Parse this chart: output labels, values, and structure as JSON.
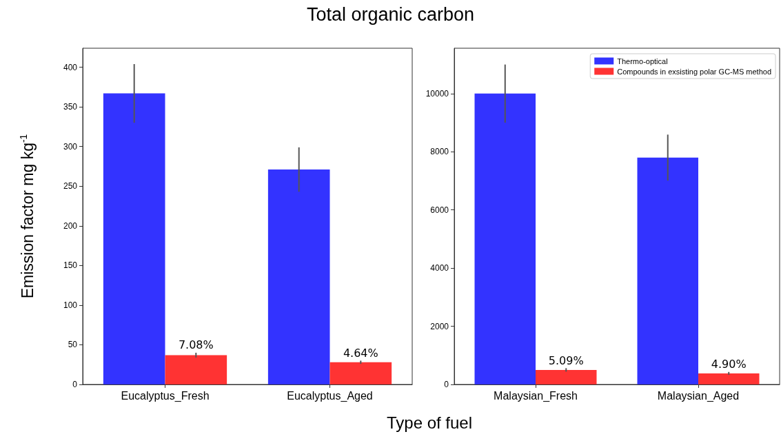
{
  "chart_data": [
    {
      "type": "bar",
      "title": "Total organic carbon",
      "xlabel": "Type of fuel",
      "ylabel": "Emission factor mg kg$^{-1}$",
      "categories": [
        "Eucalyptus_Fresh",
        "Eucalyptus_Aged"
      ],
      "ylim": [
        0,
        424
      ],
      "yticks": [
        0,
        50,
        100,
        150,
        200,
        250,
        300,
        350,
        400
      ],
      "grid": false,
      "legend": false,
      "series": [
        {
          "color": "#3333ff",
          "values": [
            367,
            271
          ],
          "errors": [
            37,
            28
          ]
        },
        {
          "color": "#ff3333",
          "values": [
            37,
            28
          ],
          "errors": [
            3,
            2
          ]
        }
      ],
      "annotations": [
        {
          "text": "7.08%",
          "x": "Eucalyptus_Fresh",
          "y": 37
        },
        {
          "text": "4.64%",
          "x": "Eucalyptus_Aged",
          "y": 28
        }
      ]
    },
    {
      "type": "bar",
      "categories": [
        "Malaysian_Fresh",
        "Malaysian_Aged"
      ],
      "ylim": [
        0,
        11560
      ],
      "yticks": [
        0,
        2000,
        4000,
        6000,
        8000,
        10000
      ],
      "grid": false,
      "legend": "top right",
      "series": [
        {
          "name": "Thermo-optical",
          "color": "#3333ff",
          "values": [
            10000,
            7800
          ],
          "errors": [
            1000,
            790
          ]
        },
        {
          "name": "Compounds in exsisting polar GC-MS method",
          "color": "#ff3333",
          "values": [
            500,
            380
          ],
          "errors": [
            60,
            50
          ]
        }
      ],
      "annotations": [
        {
          "text": "5.09%",
          "x": "Malaysian_Fresh",
          "y": 500
        },
        {
          "text": "4.90%",
          "x": "Malaysian_Aged",
          "y": 380
        }
      ]
    }
  ]
}
